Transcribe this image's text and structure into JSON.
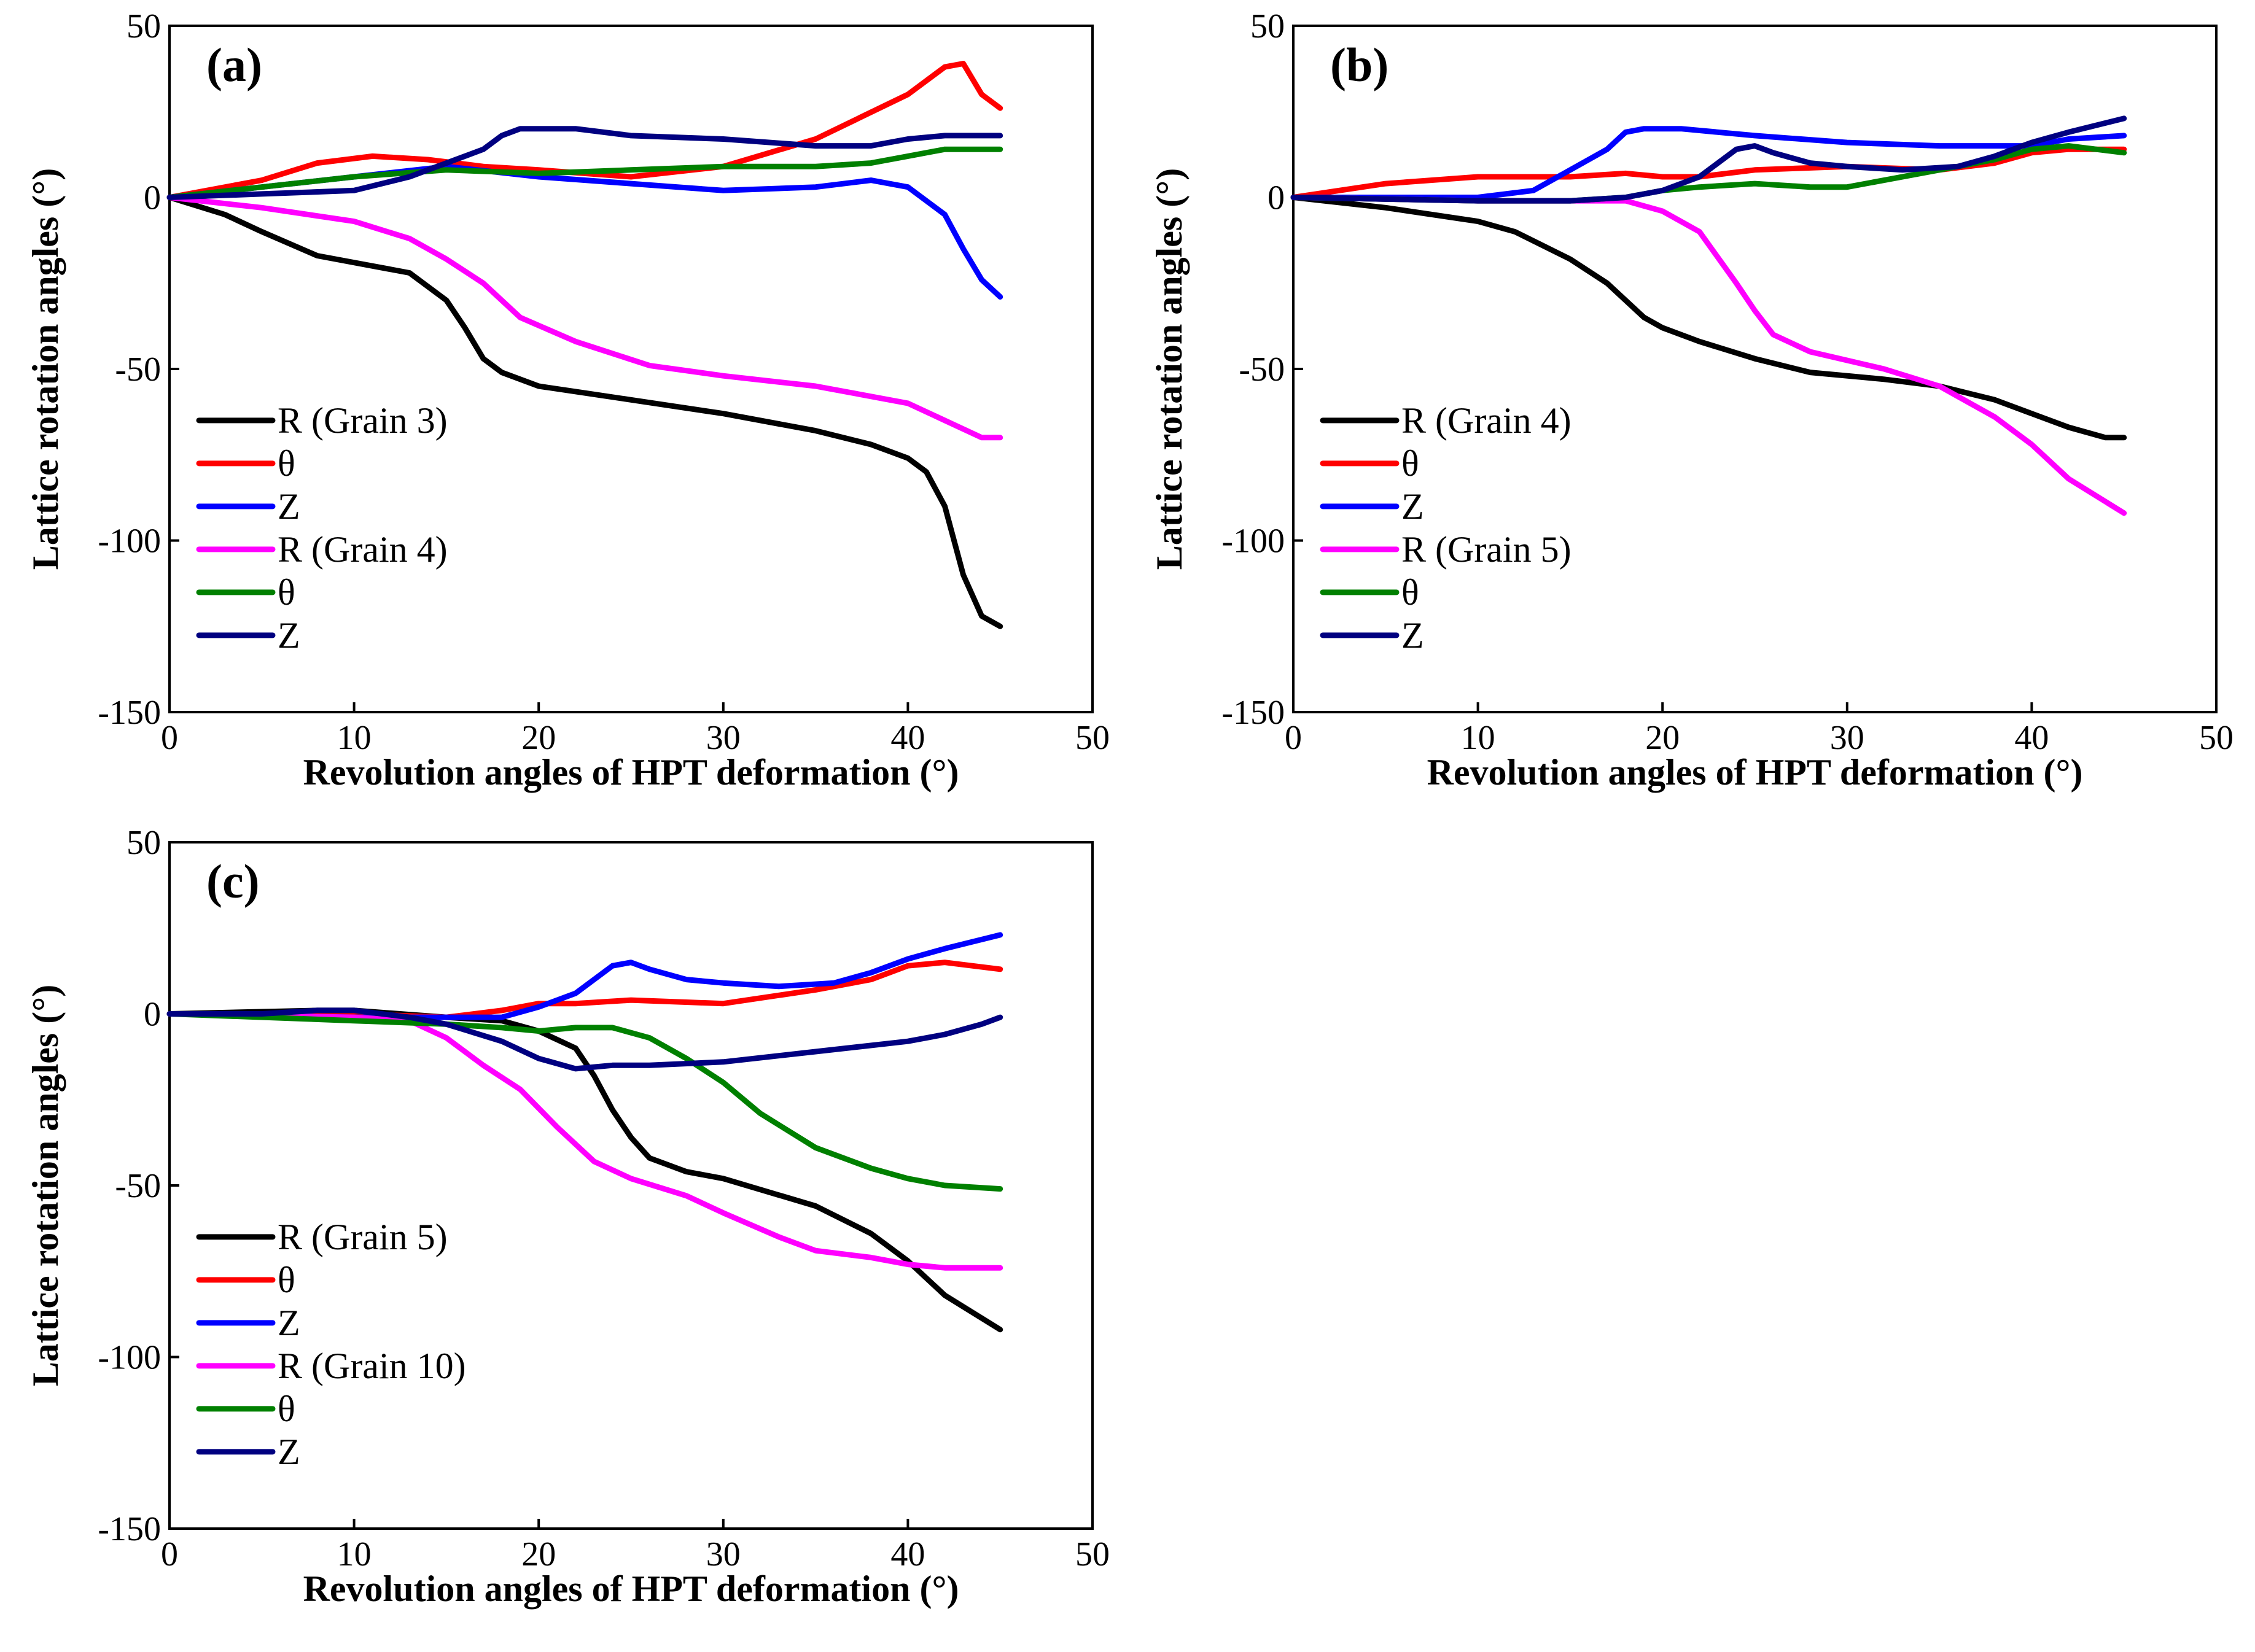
{
  "chart_data": [
    {
      "type": "line",
      "panel_label": "(a)",
      "xlabel": "Revolution angles of HPT deformation (°)",
      "ylabel": "Lattice rotation angles (°)",
      "xlim": [
        0,
        50
      ],
      "ylim": [
        -150,
        50
      ],
      "xticks": [
        0,
        10,
        20,
        30,
        40,
        50
      ],
      "yticks": [
        50,
        0,
        -50,
        -100,
        -150
      ],
      "xtick_labels": [
        "0",
        "10",
        "20",
        "30",
        "40",
        "50"
      ],
      "ytick_labels": [
        "50",
        "0",
        "-50",
        "-100",
        "-150"
      ],
      "legend_location": "lower-left",
      "series": [
        {
          "name": "R (Grain 3)",
          "color": "#000000",
          "x": [
            0,
            3,
            5,
            8,
            11,
            13,
            15,
            16,
            17,
            18,
            20,
            25,
            30,
            35,
            38,
            40,
            41,
            42,
            43,
            44,
            45
          ],
          "y": [
            0,
            -5,
            -10,
            -17,
            -20,
            -22,
            -30,
            -38,
            -47,
            -51,
            -55,
            -59,
            -63,
            -68,
            -72,
            -76,
            -80,
            -90,
            -110,
            -122,
            -125
          ]
        },
        {
          "name": "θ",
          "color": "#ff0000",
          "x": [
            0,
            5,
            8,
            11,
            14,
            17,
            20,
            25,
            30,
            35,
            40,
            42,
            43,
            44,
            45
          ],
          "y": [
            0,
            5,
            10,
            12,
            11,
            9,
            8,
            6,
            9,
            17,
            30,
            38,
            39,
            30,
            26
          ]
        },
        {
          "name": "Z",
          "color": "#0000ff",
          "x": [
            0,
            5,
            10,
            15,
            20,
            25,
            30,
            35,
            38,
            40,
            42,
            43,
            44,
            45
          ],
          "y": [
            0,
            3,
            6,
            9,
            6,
            4,
            2,
            3,
            5,
            3,
            -5,
            -15,
            -24,
            -29
          ]
        },
        {
          "name": "R (Grain 4)",
          "color": "#ff00ff",
          "x": [
            0,
            5,
            10,
            13,
            15,
            17,
            19,
            22,
            26,
            30,
            35,
            40,
            44,
            45
          ],
          "y": [
            0,
            -3,
            -7,
            -12,
            -18,
            -25,
            -35,
            -42,
            -49,
            -52,
            -55,
            -60,
            -70,
            -70
          ]
        },
        {
          "name": "θ",
          "color": "#008000",
          "x": [
            0,
            5,
            10,
            15,
            20,
            25,
            30,
            35,
            38,
            40,
            42,
            45
          ],
          "y": [
            0,
            3,
            6,
            8,
            7,
            8,
            9,
            9,
            10,
            12,
            14,
            14
          ]
        },
        {
          "name": "Z",
          "color": "#000080",
          "x": [
            0,
            5,
            10,
            13,
            15,
            17,
            18,
            19,
            22,
            25,
            30,
            35,
            38,
            40,
            42,
            45
          ],
          "y": [
            0,
            1,
            2,
            6,
            10,
            14,
            18,
            20,
            20,
            18,
            17,
            15,
            15,
            17,
            18,
            18
          ]
        }
      ]
    },
    {
      "type": "line",
      "panel_label": "(b)",
      "xlabel": "Revolution angles of HPT deformation (°)",
      "ylabel": "Lattice rotation angles (°)",
      "xlim": [
        0,
        50
      ],
      "ylim": [
        -150,
        50
      ],
      "xticks": [
        0,
        10,
        20,
        30,
        40,
        50
      ],
      "yticks": [
        50,
        0,
        -50,
        -100,
        -150
      ],
      "xtick_labels": [
        "0",
        "10",
        "20",
        "30",
        "40",
        "50"
      ],
      "ytick_labels": [
        "50",
        "0",
        "-50",
        "-100",
        "-150"
      ],
      "legend_location": "lower-left",
      "series": [
        {
          "name": "R (Grain 4)",
          "color": "#000000",
          "x": [
            0,
            5,
            10,
            12,
            15,
            17,
            19,
            20,
            22,
            25,
            28,
            32,
            35,
            38,
            40,
            42,
            44,
            45
          ],
          "y": [
            0,
            -3,
            -7,
            -10,
            -18,
            -25,
            -35,
            -38,
            -42,
            -47,
            -51,
            -53,
            -55,
            -59,
            -63,
            -67,
            -70,
            -70
          ]
        },
        {
          "name": "θ",
          "color": "#ff0000",
          "x": [
            0,
            5,
            10,
            15,
            18,
            20,
            22,
            25,
            30,
            35,
            38,
            40,
            42,
            45
          ],
          "y": [
            0,
            4,
            6,
            6,
            7,
            6,
            6,
            8,
            9,
            8,
            10,
            13,
            14,
            14
          ]
        },
        {
          "name": "Z",
          "color": "#0000ff",
          "x": [
            0,
            10,
            13,
            15,
            17,
            18,
            19,
            21,
            25,
            30,
            35,
            40,
            42,
            45
          ],
          "y": [
            0,
            0,
            2,
            8,
            14,
            19,
            20,
            20,
            18,
            16,
            15,
            15,
            17,
            18
          ]
        },
        {
          "name": "R (Grain 5)",
          "color": "#ff00ff",
          "x": [
            0,
            10,
            15,
            18,
            20,
            22,
            24,
            25,
            26,
            28,
            32,
            35,
            38,
            40,
            42,
            45
          ],
          "y": [
            0,
            -1,
            -1,
            -1,
            -4,
            -10,
            -25,
            -33,
            -40,
            -45,
            -50,
            -55,
            -64,
            -72,
            -82,
            -92
          ]
        },
        {
          "name": "θ",
          "color": "#008000",
          "x": [
            0,
            10,
            15,
            18,
            20,
            22,
            25,
            28,
            30,
            35,
            38,
            40,
            42,
            45
          ],
          "y": [
            0,
            -1,
            -1,
            0,
            2,
            3,
            4,
            3,
            3,
            8,
            11,
            14,
            15,
            13
          ]
        },
        {
          "name": "Z",
          "color": "#000080",
          "x": [
            0,
            10,
            15,
            18,
            20,
            22,
            24,
            25,
            26,
            28,
            30,
            33,
            36,
            38,
            40,
            42,
            45
          ],
          "y": [
            0,
            -1,
            -1,
            0,
            2,
            6,
            14,
            15,
            13,
            10,
            9,
            8,
            9,
            12,
            16,
            19,
            23
          ]
        }
      ]
    },
    {
      "type": "line",
      "panel_label": "(c)",
      "xlabel": "Revolution angles of HPT deformation (°)",
      "ylabel": "Lattice rotation angles (°)",
      "xlim": [
        0,
        50
      ],
      "ylim": [
        -150,
        50
      ],
      "xticks": [
        0,
        10,
        20,
        30,
        40,
        50
      ],
      "yticks": [
        50,
        0,
        -50,
        -100,
        -150
      ],
      "xtick_labels": [
        "0",
        "10",
        "20",
        "30",
        "40",
        "50"
      ],
      "ytick_labels": [
        "50",
        "0",
        "-50",
        "-100",
        "-150"
      ],
      "legend_location": "lower-left",
      "series": [
        {
          "name": "R (Grain 5)",
          "color": "#000000",
          "x": [
            0,
            8,
            10,
            15,
            18,
            20,
            22,
            23,
            24,
            25,
            26,
            28,
            30,
            35,
            38,
            40,
            42,
            45
          ],
          "y": [
            0,
            1,
            1,
            -1,
            -2,
            -5,
            -10,
            -18,
            -28,
            -36,
            -42,
            -46,
            -48,
            -56,
            -64,
            -72,
            -82,
            -92
          ]
        },
        {
          "name": "θ",
          "color": "#ff0000",
          "x": [
            0,
            10,
            15,
            18,
            20,
            22,
            25,
            30,
            35,
            38,
            40,
            42,
            45
          ],
          "y": [
            0,
            0,
            -1,
            1,
            3,
            3,
            4,
            3,
            7,
            10,
            14,
            15,
            13
          ]
        },
        {
          "name": "Z",
          "color": "#0000ff",
          "x": [
            0,
            10,
            15,
            18,
            20,
            22,
            24,
            25,
            26,
            28,
            30,
            33,
            36,
            38,
            40,
            42,
            45
          ],
          "y": [
            0,
            -1,
            -1,
            -1,
            2,
            6,
            14,
            15,
            13,
            10,
            9,
            8,
            9,
            12,
            16,
            19,
            23
          ]
        },
        {
          "name": "R (Grain 10)",
          "color": "#ff00ff",
          "x": [
            0,
            10,
            13,
            15,
            17,
            19,
            21,
            23,
            25,
            28,
            30,
            33,
            35,
            38,
            40,
            42,
            45
          ],
          "y": [
            0,
            -1,
            -2,
            -7,
            -15,
            -22,
            -33,
            -43,
            -48,
            -53,
            -58,
            -65,
            -69,
            -71,
            -73,
            -74,
            -74
          ]
        },
        {
          "name": "θ",
          "color": "#008000",
          "x": [
            0,
            10,
            15,
            18,
            20,
            22,
            24,
            26,
            28,
            30,
            32,
            35,
            38,
            40,
            42,
            45
          ],
          "y": [
            0,
            -2,
            -3,
            -4,
            -5,
            -4,
            -4,
            -7,
            -13,
            -20,
            -29,
            -39,
            -45,
            -48,
            -50,
            -51
          ]
        },
        {
          "name": "Z",
          "color": "#000080",
          "x": [
            0,
            5,
            8,
            10,
            13,
            15,
            18,
            20,
            22,
            24,
            26,
            30,
            35,
            40,
            42,
            44,
            45
          ],
          "y": [
            0,
            0,
            1,
            1,
            -1,
            -3,
            -8,
            -13,
            -16,
            -15,
            -15,
            -14,
            -11,
            -8,
            -6,
            -3,
            -1
          ]
        }
      ]
    }
  ]
}
